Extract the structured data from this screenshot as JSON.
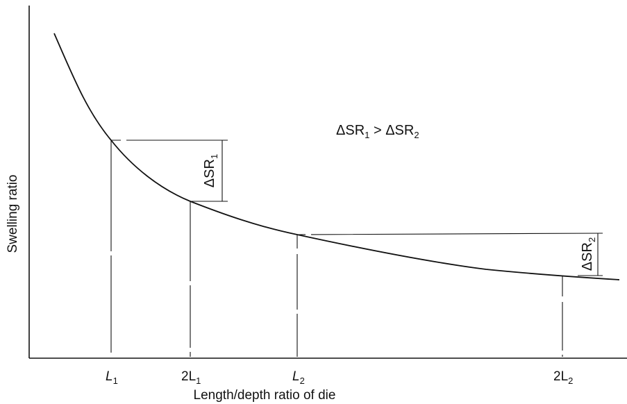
{
  "figure": {
    "y_axis_label": "Swelling ratio",
    "x_axis_label": "Length/depth ratio of die",
    "x_ticks": [
      {
        "base": "L",
        "sub": "1"
      },
      {
        "base": "2L",
        "sub": "1"
      },
      {
        "base": "L",
        "sub": "2"
      },
      {
        "base": "2L",
        "sub": "2"
      }
    ],
    "delta_1": {
      "base": "ΔSR",
      "sub": "1"
    },
    "delta_2": {
      "base": "ΔSR",
      "sub": "2"
    },
    "relation": {
      "left_base": "ΔSR",
      "left_sub": "1",
      "op": " > ",
      "right_base": "ΔSR",
      "right_sub": "2"
    }
  }
}
